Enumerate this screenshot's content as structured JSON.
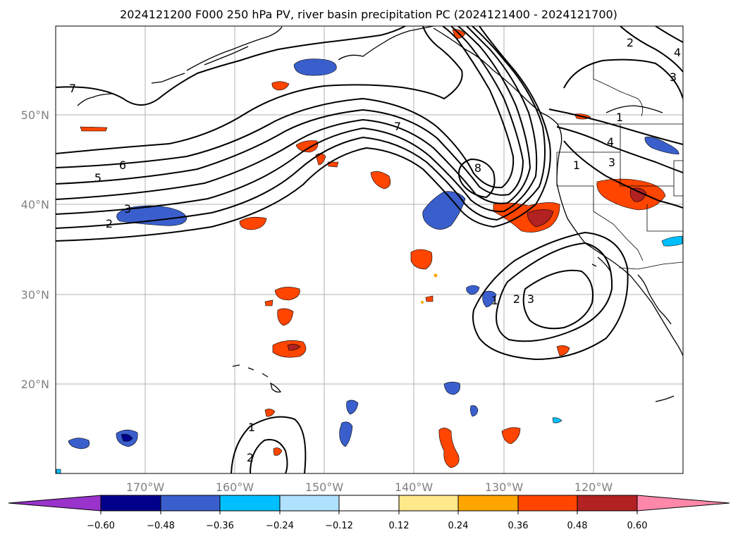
{
  "title": "2024121200 F000 250 hPa PV, river basin precipitation PC (2024121400 - 2024121700)",
  "lon_ticks": [
    "170°W",
    "160°W",
    "150°W",
    "140°W",
    "130°W",
    "120°W"
  ],
  "lat_ticks": [
    "50°N",
    "40°N",
    "30°N",
    "20°N"
  ],
  "pv_contour_labels": [
    "7",
    "6",
    "5",
    "3",
    "2",
    "7",
    "8",
    "2",
    "4",
    "3",
    "1",
    "4",
    "3",
    "1",
    "1",
    "2",
    "3",
    "1",
    "2"
  ],
  "colorbar": {
    "tick_labels": [
      "−0.60",
      "−0.48",
      "−0.36",
      "−0.24",
      "−0.12",
      "0.12",
      "0.24",
      "0.36",
      "0.48",
      "0.60"
    ],
    "colors": {
      "under": "#9933cc",
      "neg_060_048": "#00008b",
      "neg_048_036": "#3a5fcd",
      "neg_036_024": "#00bfff",
      "neg_024_012": "#b0e2ff",
      "neutral": "#ffffff",
      "pos_012_024": "#ffe98a",
      "pos_024_036": "#ffa500",
      "pos_036_048": "#ff4500",
      "pos_048_060": "#b22222",
      "over": "#ff88aa"
    }
  },
  "chart_data": {
    "type": "map",
    "projection": "PlateCarree",
    "extent": {
      "lon": [
        -180,
        -110
      ],
      "lat": [
        10,
        60
      ]
    },
    "grid": true,
    "variable_contours": "250 hPa PV",
    "variable_fill": "river basin precipitation PC"
  }
}
